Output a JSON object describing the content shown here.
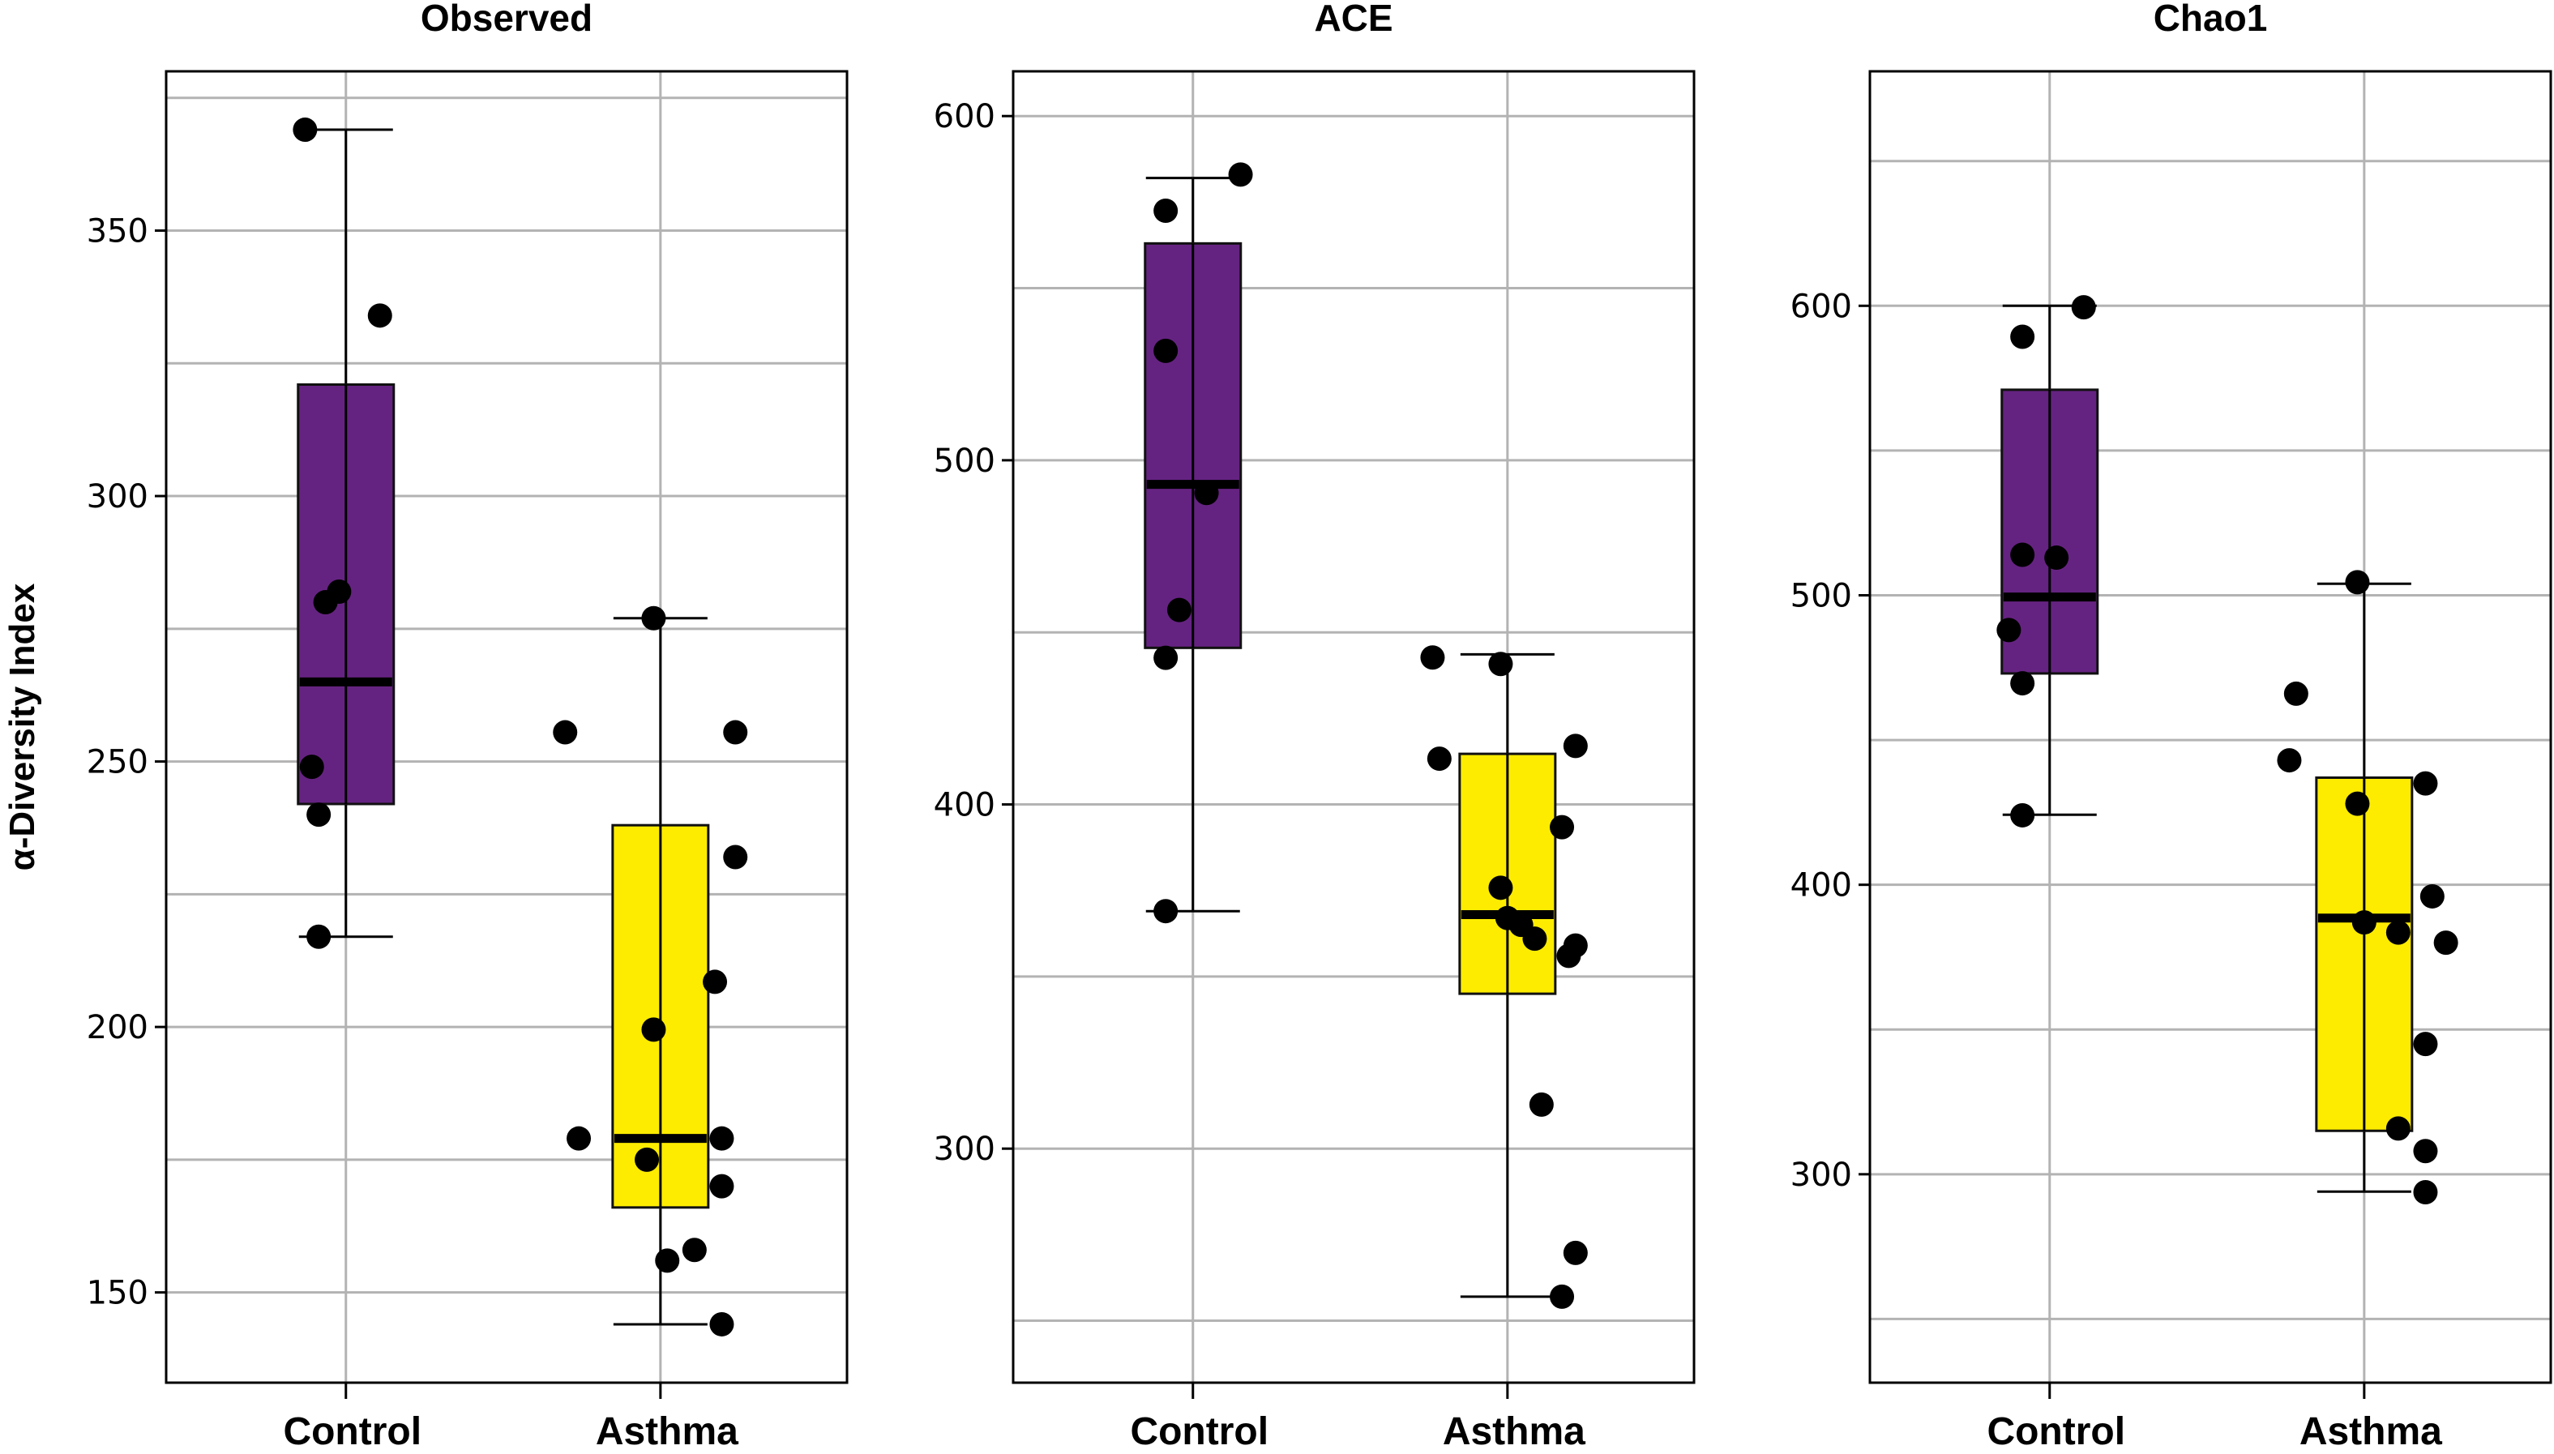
{
  "chart_data": {
    "type": "boxplot",
    "ylabel": "α-Diversity Index",
    "categories": [
      "Control",
      "Asthma"
    ],
    "colors": {
      "Control": "#652381",
      "Asthma": "#FDEC00"
    },
    "grid": true,
    "legend": "none",
    "panels": [
      {
        "title": "Observed",
        "ylim": [
          133,
          380
        ],
        "yticks": [
          150,
          200,
          250,
          300,
          350
        ],
        "minor_gridlines": [
          175,
          225,
          275,
          325,
          375
        ],
        "groups": [
          {
            "name": "Control",
            "whisker_low": 217,
            "q1": 242,
            "median": 265,
            "q3": 321,
            "whisker_high": 369,
            "points": [
              369,
              334,
              282,
              280,
              249,
              240,
              217
            ],
            "jitter": [
              -0.06,
              0.05,
              -0.01,
              -0.03,
              -0.05,
              -0.04,
              -0.04
            ]
          },
          {
            "name": "Asthma",
            "whisker_low": 144,
            "q1": 166,
            "median": 179,
            "q3": 238,
            "whisker_high": 277,
            "points": [
              277,
              255.5,
              255.5,
              232,
              208.5,
              199.5,
              179,
              179,
              175,
              170,
              158,
              156,
              144
            ],
            "jitter": [
              -0.01,
              -0.14,
              0.11,
              0.11,
              0.08,
              -0.01,
              -0.12,
              0.09,
              -0.02,
              0.09,
              0.05,
              0.01,
              0.09
            ]
          }
        ]
      },
      {
        "title": "ACE",
        "ylim": [
          232,
          613
        ],
        "yticks": [
          300,
          400,
          500,
          600
        ],
        "minor_gridlines": [
          250,
          350,
          450,
          550
        ],
        "groups": [
          {
            "name": "Control",
            "whisker_low": 369,
            "q1": 445.5,
            "median": 493,
            "q3": 563,
            "whisker_high": 582,
            "points": [
              583,
              572.5,
              531.8,
              490.5,
              456.5,
              442.6,
              369
            ],
            "jitter": [
              0.07,
              -0.04,
              -0.04,
              0.02,
              -0.02,
              -0.04,
              -0.04
            ]
          },
          {
            "name": "Asthma",
            "whisker_low": 257,
            "q1": 345,
            "median": 368,
            "q3": 414.7,
            "whisker_high": 443.6,
            "points": [
              442.7,
              440.8,
              417,
              413.3,
              393.4,
              375.8,
              367,
              365,
              361,
              359,
              356,
              312.8,
              269.7,
              257
            ],
            "jitter": [
              -0.11,
              -0.01,
              0.1,
              -0.1,
              0.08,
              -0.01,
              0.0,
              0.02,
              0.04,
              0.1,
              0.09,
              0.05,
              0.1,
              0.08
            ]
          }
        ]
      },
      {
        "title": "Chao1",
        "ylim": [
          228,
          681
        ],
        "yticks": [
          300,
          400,
          500,
          600
        ],
        "minor_gridlines": [
          250,
          350,
          450,
          550,
          650
        ],
        "groups": [
          {
            "name": "Control",
            "whisker_low": 424.2,
            "q1": 473,
            "median": 499.4,
            "q3": 571,
            "whisker_high": 600,
            "points": [
              599.5,
              589.3,
              514,
              513,
              488,
              469.6,
              424
            ],
            "jitter": [
              0.05,
              -0.04,
              -0.04,
              0.01,
              -0.06,
              -0.04,
              -0.04
            ]
          },
          {
            "name": "Asthma",
            "whisker_low": 294,
            "q1": 315,
            "median": 388.5,
            "q3": 437,
            "whisker_high": 504,
            "points": [
              504.5,
              466,
              443,
              435,
              428,
              396,
              387,
              383.5,
              380,
              345,
              315.8,
              308,
              293.8
            ],
            "jitter": [
              -0.01,
              -0.1,
              -0.11,
              0.09,
              -0.01,
              0.1,
              0.0,
              0.05,
              0.12,
              0.09,
              0.05,
              0.09,
              0.09
            ]
          }
        ]
      }
    ]
  }
}
